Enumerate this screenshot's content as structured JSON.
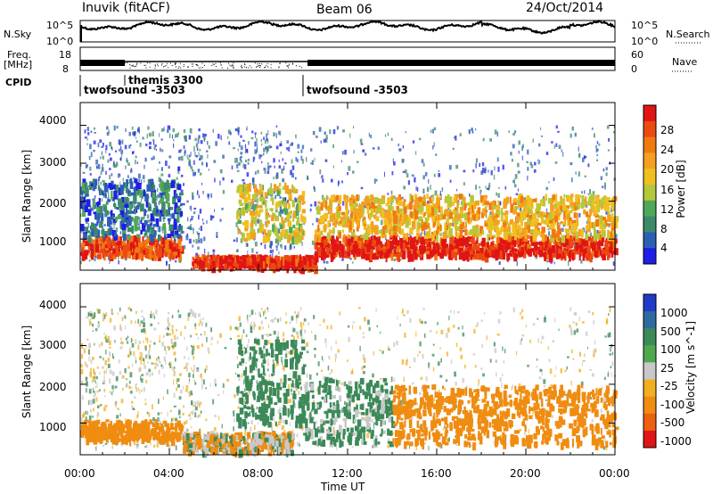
{
  "header": {
    "station": "Inuvik (fitACF)",
    "beam": "Beam 06",
    "date": "24/Oct/2014"
  },
  "noise_panel": {
    "left_label": "N.Sky",
    "right_label": "N.Search",
    "left_ticks": [
      "10^5",
      "10^0"
    ],
    "right_ticks": [
      "10^5",
      "10^0"
    ]
  },
  "freq_panel": {
    "label_line1": "Freq.",
    "label_line2": "[MHz]",
    "left_ticks": [
      "18",
      "8"
    ],
    "right_ticks": [
      "60",
      "0"
    ],
    "right_label": "Nave"
  },
  "cpid": {
    "label": "CPID",
    "segments": [
      {
        "name": "twofsound -3503",
        "start_hour": 0.0,
        "end_hour": 2.0
      },
      {
        "name": "themis 3300",
        "start_hour": 2.0,
        "end_hour": 10.0
      },
      {
        "name": "twofsound -3503",
        "start_hour": 10.0,
        "end_hour": 24.0
      }
    ]
  },
  "chart_data": [
    {
      "type": "heatmap",
      "title": "",
      "quantity": "Power",
      "ylabel": "Slant Range [km]",
      "xlabel": "",
      "xlim": [
        "00:00",
        "24:00"
      ],
      "ylim": [
        180,
        4600
      ],
      "x_ticks": [
        "00:00",
        "04:00",
        "08:00",
        "12:00",
        "16:00",
        "20:00",
        "00:00"
      ],
      "y_ticks": [
        1000,
        2000,
        3000,
        4000
      ],
      "colorbar": {
        "label": "Power [dB]",
        "ticks": [
          4,
          8,
          12,
          16,
          20,
          24,
          28
        ],
        "colors": [
          "#1e1ee6",
          "#2b5fb4",
          "#3d8a6a",
          "#4fa85a",
          "#b5c83a",
          "#f0c020",
          "#f5a020",
          "#f07a10",
          "#ec4a10",
          "#e01515"
        ]
      },
      "features": [
        {
          "start_hour": 0.0,
          "end_hour": 4.5,
          "range_km": [
            600,
            1100
          ],
          "value_db": 26
        },
        {
          "start_hour": 0.0,
          "end_hour": 4.5,
          "range_km": [
            1100,
            2600
          ],
          "value_db": 6
        },
        {
          "start_hour": 5.0,
          "end_hour": 10.5,
          "range_km": [
            300,
            600
          ],
          "value_db": 28
        },
        {
          "start_hour": 7.0,
          "end_hour": 10.0,
          "range_km": [
            1000,
            2500
          ],
          "value_db": 16
        },
        {
          "start_hour": 10.5,
          "end_hour": 24.0,
          "range_km": [
            600,
            1100
          ],
          "value_db": 28
        },
        {
          "start_hour": 10.5,
          "end_hour": 24.0,
          "range_km": [
            1100,
            2200
          ],
          "value_db": 18
        }
      ]
    },
    {
      "type": "heatmap",
      "title": "",
      "quantity": "Velocity",
      "ylabel": "Slant Range [km]",
      "xlabel": "Time UT",
      "xlim": [
        "00:00",
        "24:00"
      ],
      "ylim": [
        180,
        4600
      ],
      "x_ticks": [
        "00:00",
        "04:00",
        "08:00",
        "12:00",
        "16:00",
        "20:00",
        "00:00"
      ],
      "y_ticks": [
        1000,
        2000,
        3000,
        4000
      ],
      "colorbar": {
        "label": "Velocity [m s^-1]",
        "ticks": [
          1000,
          500,
          100,
          25,
          -25,
          -100,
          -500,
          -1000
        ],
        "colors": [
          "#1e3cc8",
          "#2d6aa0",
          "#3c8a5a",
          "#4fa850",
          "#c8c8c8",
          "#f0b020",
          "#f08c10",
          "#ec6010",
          "#e01515"
        ]
      },
      "features": [
        {
          "start_hour": 0.0,
          "end_hour": 4.5,
          "range_km": [
            600,
            1100
          ],
          "value_ms": -200
        },
        {
          "start_hour": 4.5,
          "end_hour": 9.5,
          "range_km": [
            300,
            800
          ],
          "value_ms": 0
        },
        {
          "start_hour": 7.0,
          "end_hour": 10.0,
          "range_km": [
            1000,
            3200
          ],
          "value_ms": 200
        },
        {
          "start_hour": 10.0,
          "end_hour": 14.0,
          "range_km": [
            500,
            2200
          ],
          "value_ms": 100
        },
        {
          "start_hour": 14.0,
          "end_hour": 24.0,
          "range_km": [
            500,
            2000
          ],
          "value_ms": -200
        }
      ]
    }
  ]
}
